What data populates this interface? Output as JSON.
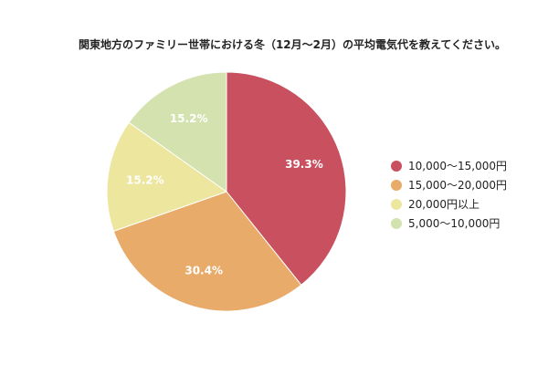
{
  "chart_data": {
    "type": "pie",
    "title": "関東地方のファミリー世帯における冬（12月〜2月）の平均電気代を教えてください。",
    "legend_position": "right",
    "slices": [
      {
        "label": "10,000〜15,000円",
        "value": 39.3,
        "display": "39.3%",
        "color": "#c8505f"
      },
      {
        "label": "15,000〜20,000円",
        "value": 30.4,
        "display": "30.4%",
        "color": "#e8ab6a"
      },
      {
        "label": "20,000円以上",
        "value": 15.2,
        "display": "15.2%",
        "color": "#ede69f"
      },
      {
        "label": "5,000〜10,000円",
        "value": 15.2,
        "display": "15.2%",
        "color": "#d3e2ae"
      }
    ]
  }
}
